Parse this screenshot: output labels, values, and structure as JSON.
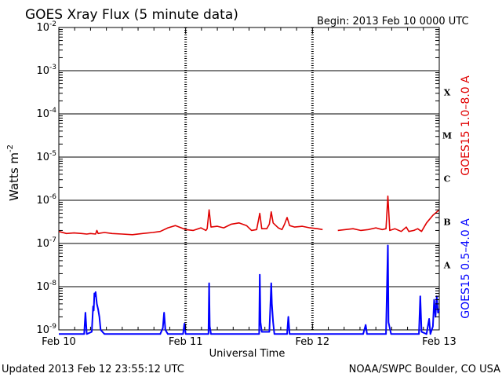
{
  "chart_data": {
    "type": "line",
    "title": "GOES Xray Flux (5 minute data)",
    "begin_label": "Begin:  2013 Feb 10 0000 UTC",
    "xlabel": "Universal Time",
    "ylabel": "Watts m",
    "ylabel_sup": "-2",
    "y_scale": "log",
    "ylim": [
      1e-09,
      0.01
    ],
    "xlim_days": [
      0,
      3
    ],
    "x_ticks": [
      "Feb 10",
      "Feb 11",
      "Feb 12",
      "Feb 13"
    ],
    "y_ticks": [
      {
        "base": "10",
        "exp": "-2"
      },
      {
        "base": "10",
        "exp": "-3"
      },
      {
        "base": "10",
        "exp": "-4"
      },
      {
        "base": "10",
        "exp": "-5"
      },
      {
        "base": "10",
        "exp": "-6"
      },
      {
        "base": "10",
        "exp": "-7"
      },
      {
        "base": "10",
        "exp": "-8"
      },
      {
        "base": "10",
        "exp": "-9"
      }
    ],
    "flare_classes": [
      {
        "label": "X",
        "level": 0.0001
      },
      {
        "label": "M",
        "level": 1e-05
      },
      {
        "label": "C",
        "level": 1e-06
      },
      {
        "label": "B",
        "level": 1e-07
      },
      {
        "label": "A",
        "level": 1e-08
      }
    ],
    "grid": true,
    "series": [
      {
        "name": "GOES15 1.0–8.0 A",
        "color": "#e00000",
        "points": [
          [
            0.0,
            1.9e-07
          ],
          [
            0.06,
            1.7e-07
          ],
          [
            0.12,
            1.75e-07
          ],
          [
            0.18,
            1.7e-07
          ],
          [
            0.22,
            1.65e-07
          ],
          [
            0.25,
            1.7e-07
          ],
          [
            0.29,
            1.65e-07
          ],
          [
            0.3,
            2e-07
          ],
          [
            0.31,
            1.7e-07
          ],
          [
            0.36,
            1.8e-07
          ],
          [
            0.42,
            1.7e-07
          ],
          [
            0.5,
            1.65e-07
          ],
          [
            0.58,
            1.6e-07
          ],
          [
            0.66,
            1.7e-07
          ],
          [
            0.74,
            1.8e-07
          ],
          [
            0.8,
            1.9e-07
          ],
          [
            0.86,
            2.3e-07
          ],
          [
            0.92,
            2.6e-07
          ],
          [
            1.0,
            2.1e-07
          ],
          [
            1.06,
            2e-07
          ],
          [
            1.12,
            2.3e-07
          ],
          [
            1.16,
            2e-07
          ],
          [
            1.17,
            2.2e-07
          ],
          [
            1.185,
            6e-07
          ],
          [
            1.2,
            2.4e-07
          ],
          [
            1.25,
            2.5e-07
          ],
          [
            1.3,
            2.3e-07
          ],
          [
            1.36,
            2.8e-07
          ],
          [
            1.42,
            3e-07
          ],
          [
            1.48,
            2.6e-07
          ],
          [
            1.52,
            2e-07
          ],
          [
            1.56,
            2.1e-07
          ],
          [
            1.585,
            5e-07
          ],
          [
            1.6,
            2.2e-07
          ],
          [
            1.64,
            2.2e-07
          ],
          [
            1.66,
            2.8e-07
          ],
          [
            1.675,
            5.4e-07
          ],
          [
            1.69,
            3e-07
          ],
          [
            1.73,
            2.3e-07
          ],
          [
            1.76,
            2.1e-07
          ],
          [
            1.78,
            2.8e-07
          ],
          [
            1.8,
            4e-07
          ],
          [
            1.82,
            2.6e-07
          ],
          [
            1.86,
            2.4e-07
          ],
          [
            1.92,
            2.5e-07
          ],
          [
            1.98,
            2.3e-07
          ],
          [
            2.04,
            2.2e-07
          ],
          [
            2.08,
            2.1e-07
          ]
        ],
        "points_b": [
          [
            2.2,
            2e-07
          ],
          [
            2.26,
            2.1e-07
          ],
          [
            2.32,
            2.2e-07
          ],
          [
            2.38,
            2e-07
          ],
          [
            2.44,
            2.1e-07
          ],
          [
            2.5,
            2.3e-07
          ],
          [
            2.55,
            2.1e-07
          ],
          [
            2.58,
            2.2e-07
          ],
          [
            2.595,
            1.25e-06
          ],
          [
            2.61,
            2e-07
          ],
          [
            2.65,
            2.2e-07
          ],
          [
            2.7,
            1.9e-07
          ],
          [
            2.74,
            2.4e-07
          ],
          [
            2.76,
            1.9e-07
          ],
          [
            2.8,
            2e-07
          ],
          [
            2.83,
            2.2e-07
          ],
          [
            2.86,
            1.9e-07
          ],
          [
            2.9,
            3e-07
          ],
          [
            2.95,
            4.5e-07
          ],
          [
            3.0,
            6e-07
          ]
        ]
      },
      {
        "name": "GOES15 0.5–4.0 A",
        "color": "#0000ff",
        "points": [
          [
            0.0,
            8e-10
          ],
          [
            0.2,
            8e-10
          ],
          [
            0.21,
            2.5e-09
          ],
          [
            0.22,
            8e-10
          ],
          [
            0.26,
            9e-10
          ],
          [
            0.27,
            3.5e-09
          ],
          [
            0.275,
            2.8e-09
          ],
          [
            0.28,
            7e-09
          ],
          [
            0.285,
            6e-09
          ],
          [
            0.29,
            7.5e-09
          ],
          [
            0.3,
            4e-09
          ],
          [
            0.31,
            3e-09
          ],
          [
            0.32,
            2e-09
          ],
          [
            0.33,
            1e-09
          ],
          [
            0.36,
            8e-10
          ],
          [
            0.8,
            8e-10
          ],
          [
            0.82,
            1.1e-09
          ],
          [
            0.83,
            2.5e-09
          ],
          [
            0.84,
            1e-09
          ],
          [
            0.86,
            8e-10
          ],
          [
            0.98,
            8e-10
          ],
          [
            0.99,
            1.4e-09
          ],
          [
            1.0,
            8e-10
          ],
          [
            1.18,
            8e-10
          ],
          [
            1.185,
            1.2e-08
          ],
          [
            1.19,
            1.2e-09
          ],
          [
            1.2,
            8e-10
          ],
          [
            1.58,
            8e-10
          ],
          [
            1.585,
            1.9e-08
          ],
          [
            1.59,
            1.5e-09
          ],
          [
            1.6,
            9e-10
          ],
          [
            1.66,
            9e-10
          ],
          [
            1.67,
            5e-09
          ],
          [
            1.675,
            1.2e-08
          ],
          [
            1.68,
            4e-09
          ],
          [
            1.69,
            1.5e-09
          ],
          [
            1.7,
            8e-10
          ],
          [
            1.8,
            8e-10
          ],
          [
            1.81,
            2e-09
          ],
          [
            1.82,
            8e-10
          ],
          [
            2.4,
            8e-10
          ],
          [
            2.42,
            1.3e-09
          ],
          [
            2.43,
            8e-10
          ],
          [
            2.58,
            8e-10
          ],
          [
            2.595,
            9e-08
          ],
          [
            2.6,
            1.5e-09
          ],
          [
            2.62,
            8e-10
          ],
          [
            2.84,
            8e-10
          ],
          [
            2.85,
            6e-09
          ],
          [
            2.86,
            9e-10
          ],
          [
            2.9,
            8e-10
          ],
          [
            2.92,
            1.8e-09
          ],
          [
            2.93,
            8e-10
          ],
          [
            2.95,
            1.2e-09
          ],
          [
            2.96,
            5e-09
          ],
          [
            2.97,
            2e-09
          ],
          [
            2.98,
            6e-09
          ],
          [
            2.99,
            2.5e-09
          ],
          [
            3.0,
            3e-09
          ]
        ]
      }
    ]
  },
  "footer": {
    "updated": "Updated 2013 Feb 12 23:55:12 UTC",
    "credit": "NOAA/SWPC Boulder, CO USA"
  }
}
